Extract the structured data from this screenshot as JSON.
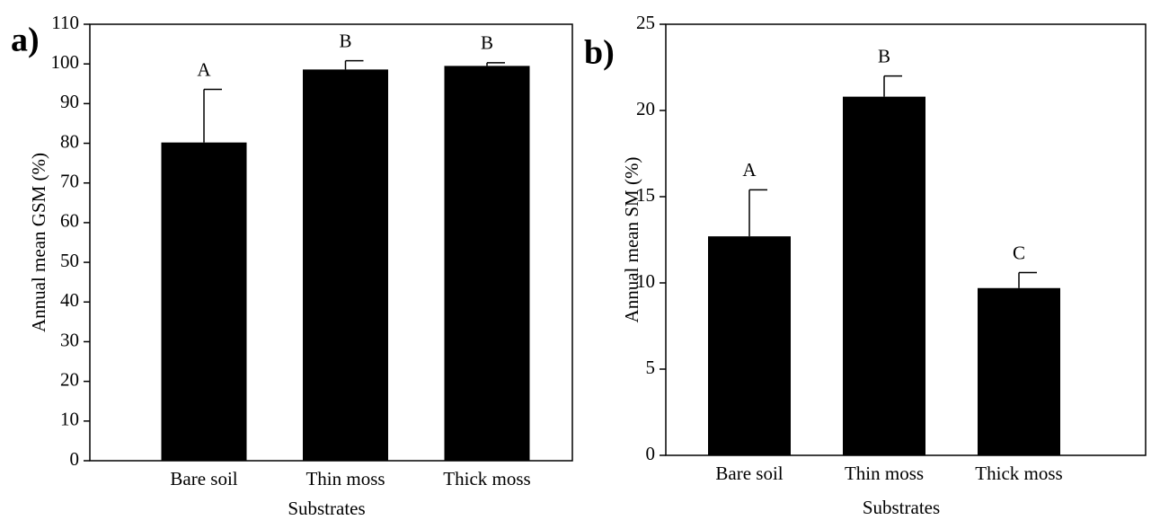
{
  "chart_data": [
    {
      "type": "bar",
      "panel_label": "a)",
      "x_label": "Substrates",
      "y_label": "Annual mean GSM (%)",
      "categories": [
        "Bare soil",
        "Thin moss",
        "Thick moss"
      ],
      "values": [
        80.2,
        98.6,
        99.5
      ],
      "errors": [
        13.4,
        2.2,
        0.8
      ],
      "labels": [
        "A",
        "B",
        "B"
      ],
      "color": "#000000",
      "ylim": [
        0,
        110
      ],
      "yticks": [
        0,
        10,
        20,
        30,
        40,
        50,
        60,
        70,
        80,
        90,
        100,
        110
      ]
    },
    {
      "type": "bar",
      "panel_label": "b)",
      "x_label": "Substrates",
      "y_label": "Annual mean SM (%)",
      "categories": [
        "Bare soil",
        "Thin moss",
        "Thick moss"
      ],
      "values": [
        12.7,
        20.8,
        9.7
      ],
      "errors": [
        2.7,
        1.2,
        0.9
      ],
      "labels": [
        "A",
        "B",
        "C"
      ],
      "color": "#000000",
      "ylim": [
        0,
        25
      ],
      "yticks": [
        0,
        5,
        10,
        15,
        20,
        25
      ]
    }
  ]
}
